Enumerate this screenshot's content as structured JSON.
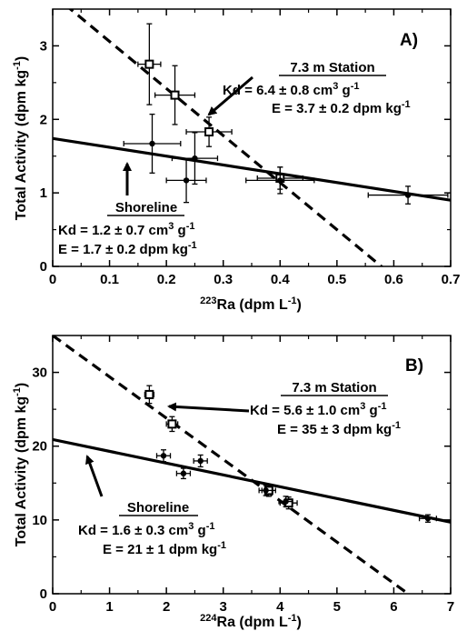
{
  "chart_data": [
    {
      "type": "scatter",
      "panel_label": "A)",
      "xlabel_sup": "223",
      "xlabel_main": "Ra (dpm L",
      "xlabel_exp": "-1",
      "xlabel_tail": ")",
      "ylabel_main": "Total Activity (dpm kg",
      "ylabel_exp": "-1",
      "ylabel_tail": ")",
      "xlim": [
        0,
        0.7
      ],
      "ylim": [
        0,
        3.5
      ],
      "xticks": [
        0,
        0.1,
        0.2,
        0.3,
        0.4,
        0.5,
        0.6,
        0.7
      ],
      "xtick_labels": [
        "0",
        "0.1",
        "0.2",
        "0.3",
        "0.4",
        "0.5",
        "0.6",
        "0.7"
      ],
      "yticks": [
        0,
        1,
        2,
        3
      ],
      "ytick_labels": [
        "0",
        "1",
        "2",
        "3"
      ],
      "grid": false,
      "series": [
        {
          "name": "7.3 m Station",
          "marker": "square-open",
          "line_style": "dashed",
          "line": {
            "intercept": 3.7,
            "slope": -6.4
          },
          "points": [
            {
              "x": 0.17,
              "y": 2.75,
              "xerr": 0.02,
              "yerr": 0.55
            },
            {
              "x": 0.215,
              "y": 2.33,
              "xerr": 0.035,
              "yerr": 0.4
            },
            {
              "x": 0.275,
              "y": 1.83,
              "xerr": 0.04,
              "yerr": 0.2
            },
            {
              "x": 0.4,
              "y": 1.2,
              "xerr": 0.04,
              "yerr": 0.15
            }
          ]
        },
        {
          "name": "Shoreline",
          "marker": "circle-filled",
          "line_style": "solid",
          "line": {
            "intercept": 1.74,
            "slope": -1.2
          },
          "points": [
            {
              "x": 0.175,
              "y": 1.67,
              "xerr": 0.05,
              "yerr": 0.4
            },
            {
              "x": 0.235,
              "y": 1.17,
              "xerr": 0.035,
              "yerr": 0.3
            },
            {
              "x": 0.25,
              "y": 1.47,
              "xerr": 0.04,
              "yerr": 0.35
            },
            {
              "x": 0.4,
              "y": 1.17,
              "xerr": 0.06,
              "yerr": 0.18
            },
            {
              "x": 0.625,
              "y": 0.97,
              "xerr": 0.07,
              "yerr": 0.12
            }
          ]
        }
      ],
      "annotations": {
        "station": {
          "title": "7.3 m Station",
          "kd_pre": "Kd = 6.4 ± 0.8 cm",
          "kd_sup": "3",
          "kd_post": " g",
          "kd_exp": "-1",
          "e_pre": "E = 3.7 ± 0.2 dpm kg",
          "e_exp": "-1"
        },
        "shore": {
          "title": "Shoreline",
          "kd_pre": "Kd = 1.2 ± 0.7 cm",
          "kd_sup": "3",
          "kd_post": " g",
          "kd_exp": "-1",
          "e_pre": "E = 1.7 ± 0.2 dpm kg",
          "e_exp": "-1"
        }
      }
    },
    {
      "type": "scatter",
      "panel_label": "B)",
      "xlabel_sup": "224",
      "xlabel_main": "Ra (dpm L",
      "xlabel_exp": "-1",
      "xlabel_tail": ")",
      "ylabel_main": "Total Activity (dpm kg",
      "ylabel_exp": "-1",
      "ylabel_tail": ")",
      "xlim": [
        0,
        7
      ],
      "ylim": [
        0,
        35
      ],
      "xticks": [
        0,
        1,
        2,
        3,
        4,
        5,
        6,
        7
      ],
      "xtick_labels": [
        "0",
        "1",
        "2",
        "3",
        "4",
        "5",
        "6",
        "7"
      ],
      "yticks": [
        0,
        10,
        20,
        30
      ],
      "ytick_labels": [
        "0",
        "10",
        "20",
        "30"
      ],
      "grid": false,
      "series": [
        {
          "name": "7.3 m Station",
          "marker": "square-open",
          "line_style": "dashed",
          "line": {
            "intercept": 35,
            "slope": -5.6
          },
          "points": [
            {
              "x": 1.7,
              "y": 27.0,
              "xerr": 0.08,
              "yerr": 1.2
            },
            {
              "x": 2.1,
              "y": 23.0,
              "xerr": 0.1,
              "yerr": 1.0
            },
            {
              "x": 3.8,
              "y": 14.0,
              "xerr": 0.12,
              "yerr": 0.8
            },
            {
              "x": 4.15,
              "y": 12.3,
              "xerr": 0.15,
              "yerr": 0.8
            }
          ]
        },
        {
          "name": "Shoreline",
          "marker": "circle-filled",
          "line_style": "solid",
          "line": {
            "intercept": 20.9,
            "slope": -1.6
          },
          "points": [
            {
              "x": 1.95,
              "y": 18.7,
              "xerr": 0.12,
              "yerr": 0.8
            },
            {
              "x": 2.3,
              "y": 16.3,
              "xerr": 0.12,
              "yerr": 0.7
            },
            {
              "x": 2.6,
              "y": 18.0,
              "xerr": 0.12,
              "yerr": 0.8
            },
            {
              "x": 3.75,
              "y": 14.0,
              "xerr": 0.12,
              "yerr": 0.7
            },
            {
              "x": 4.1,
              "y": 12.5,
              "xerr": 0.12,
              "yerr": 0.7
            },
            {
              "x": 6.6,
              "y": 10.2,
              "xerr": 0.15,
              "yerr": 0.5
            }
          ]
        }
      ],
      "annotations": {
        "station": {
          "title": "7.3 m Station",
          "kd_pre": "Kd = 5.6 ± 1.0 cm",
          "kd_sup": "3",
          "kd_post": " g",
          "kd_exp": "-1",
          "e_pre": "E = 35 ± 3 dpm kg",
          "e_exp": "-1"
        },
        "shore": {
          "title": "Shoreline",
          "kd_pre": "Kd = 1.6 ± 0.3 cm",
          "kd_sup": "3",
          "kd_post": " g",
          "kd_exp": "-1",
          "e_pre": "E = 21 ± 1 dpm kg",
          "e_exp": "-1"
        }
      }
    }
  ]
}
